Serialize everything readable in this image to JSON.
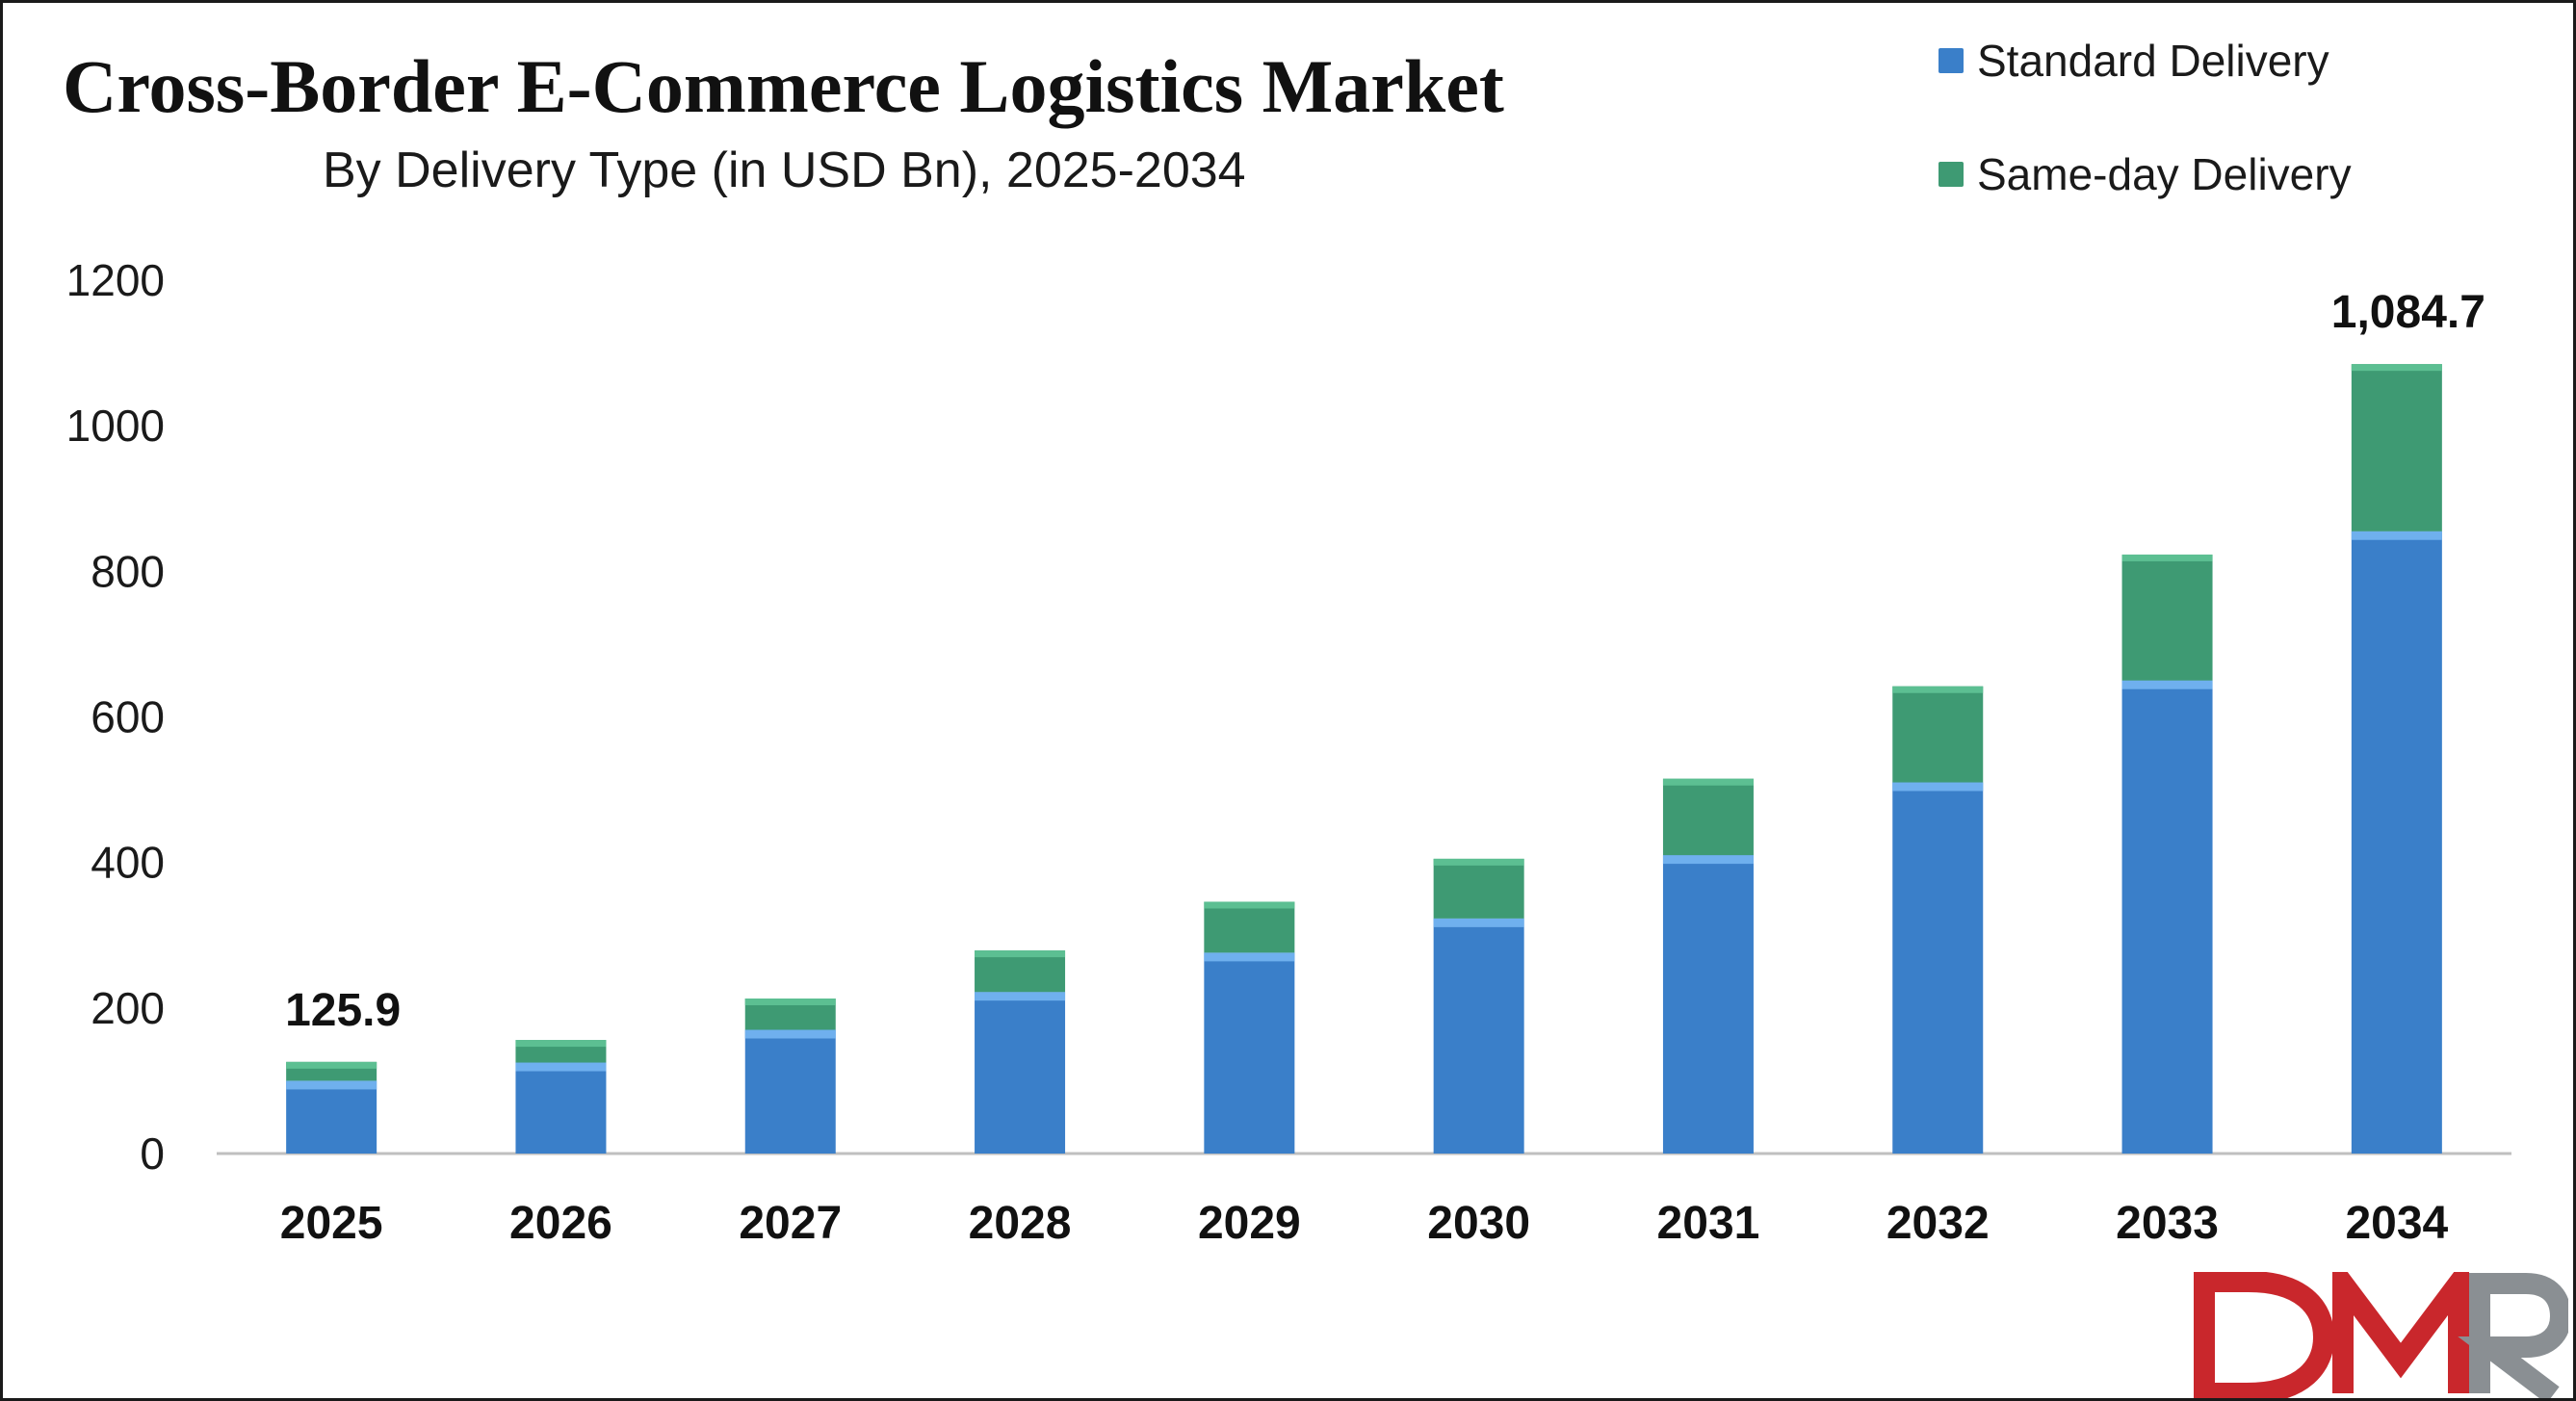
{
  "title": "Cross-Border E-Commerce Logistics Market",
  "subtitle": "By Delivery Type (in USD Bn), 2025-2034",
  "colors": {
    "standard": "#3a7fc9",
    "standard_top": "#6fb0ee",
    "same_day": "#3e9a73",
    "same_day_top": "#5cbf92",
    "axis": "#bfbfbf"
  },
  "logo": {
    "text": "DMR"
  },
  "chart_data": {
    "type": "bar",
    "stacked": true,
    "categories": [
      "2025",
      "2026",
      "2027",
      "2028",
      "2029",
      "2030",
      "2031",
      "2032",
      "2033",
      "2034"
    ],
    "series": [
      {
        "name": "Standard Delivery",
        "values": [
          100,
          125,
          170,
          222,
          276,
          323,
          410,
          510,
          650,
          855
        ]
      },
      {
        "name": "Same-day Delivery",
        "values": [
          25.9,
          31,
          43,
          57,
          70,
          82,
          105,
          132,
          173,
          229.7
        ]
      }
    ],
    "data_labels": [
      {
        "category": "2025",
        "text": "125.9"
      },
      {
        "category": "2034",
        "text": "1,084.7"
      }
    ],
    "ylim": [
      0,
      1200
    ],
    "yticks": [
      "0",
      "200",
      "400",
      "600",
      "800",
      "1000",
      "1200"
    ],
    "legend_position": "top-right",
    "grid": false
  }
}
